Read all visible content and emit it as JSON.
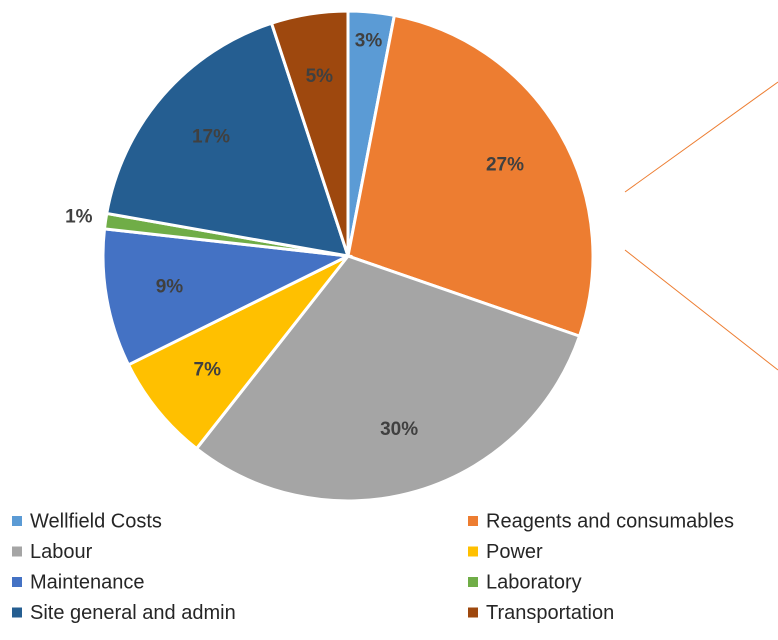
{
  "chart_data": {
    "type": "pie",
    "categories": [
      "Wellfield Costs",
      "Reagents and consumables",
      "Labour",
      "Power",
      "Maintenance",
      "Laboratory",
      "Site general and admin",
      "Transportation"
    ],
    "values": [
      3,
      27,
      30,
      7,
      9,
      1,
      17,
      5
    ],
    "value_labels": [
      "3%",
      "27%",
      "30%",
      "7%",
      "9%",
      "1%",
      "17%",
      "5%"
    ],
    "colors": [
      "#5b9bd5",
      "#ed7d31",
      "#a5a5a5",
      "#ffc000",
      "#4472c4",
      "#70ad47",
      "#255e91",
      "#9e480e"
    ]
  }
}
